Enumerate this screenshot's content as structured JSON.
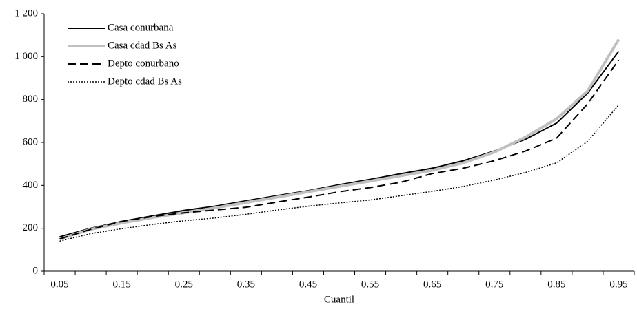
{
  "chart_data": {
    "type": "line",
    "x_label": "Cuantil",
    "categories": [
      "0.05",
      null,
      "0.15",
      null,
      "0.25",
      null,
      "0.35",
      null,
      "0.45",
      null,
      "0.55",
      null,
      "0.65",
      null,
      "0.75",
      null,
      "0.85",
      null,
      "0.95"
    ],
    "series": [
      {
        "name": "Casa conurbana",
        "color": "#000000",
        "line_style": "solid",
        "width": 2,
        "values": [
          160,
          200,
          232,
          258,
          283,
          303,
          328,
          352,
          375,
          403,
          428,
          455,
          480,
          515,
          560,
          615,
          690,
          830,
          1025
        ]
      },
      {
        "name": "Casa cdad Bs As",
        "color": "#c0c0c0",
        "line_style": "solid",
        "width": 4,
        "values": [
          150,
          195,
          225,
          250,
          272,
          295,
          320,
          345,
          370,
          395,
          420,
          445,
          470,
          505,
          555,
          625,
          710,
          840,
          1080
        ]
      },
      {
        "name": "Depto conurbano",
        "color": "#000000",
        "line_style": "dashed",
        "width": 2,
        "values": [
          150,
          195,
          232,
          255,
          272,
          285,
          298,
          322,
          345,
          370,
          390,
          415,
          455,
          480,
          515,
          560,
          620,
          780,
          985
        ]
      },
      {
        "name": "Depto cdad Bs As",
        "color": "#000000",
        "line_style": "dotted",
        "width": 1.5,
        "values": [
          140,
          175,
          198,
          218,
          235,
          248,
          265,
          285,
          303,
          318,
          332,
          352,
          372,
          395,
          425,
          460,
          505,
          605,
          775
        ]
      }
    ],
    "ylim": [
      0,
      1200
    ],
    "yticks": [
      0,
      200,
      400,
      600,
      800,
      {
        "value": 1000,
        "label": "1 000"
      },
      {
        "value": 1200,
        "label": "1 200"
      }
    ],
    "legend": "top-left",
    "grid": false
  }
}
